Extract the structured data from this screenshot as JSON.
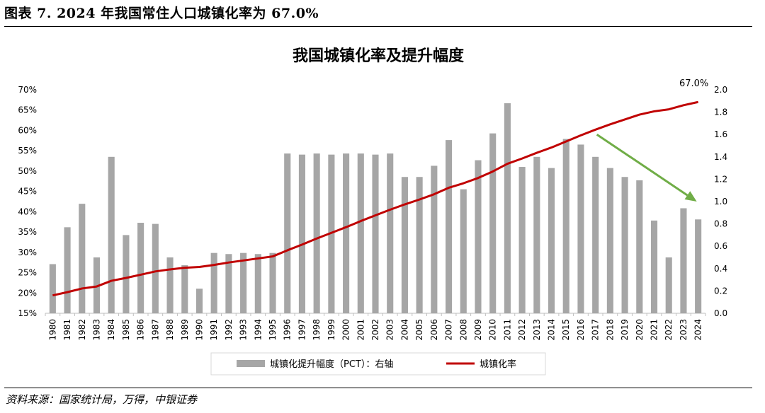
{
  "figure": {
    "title": "图表 7. 2024 年我国常住人口城镇化率为 67.0%",
    "source": "资料来源：国家统计局，万得，中银证券"
  },
  "colors": {
    "bar": "#a6a6a6",
    "line": "#c00000",
    "arrow": "#70ad47"
  },
  "chart_data": {
    "type": "bar+line",
    "title": "我国城镇化率及提升幅度",
    "categories": [
      "1980",
      "1981",
      "1982",
      "1983",
      "1984",
      "1985",
      "1986",
      "1987",
      "1988",
      "1989",
      "1990",
      "1991",
      "1992",
      "1993",
      "1994",
      "1995",
      "1996",
      "1997",
      "1998",
      "1999",
      "2000",
      "2001",
      "2002",
      "2003",
      "2004",
      "2005",
      "2006",
      "2007",
      "2008",
      "2009",
      "2010",
      "2011",
      "2012",
      "2013",
      "2014",
      "2015",
      "2016",
      "2017",
      "2018",
      "2019",
      "2020",
      "2021",
      "2022",
      "2023",
      "2024"
    ],
    "series": [
      {
        "name": "城镇化提升幅度（PCT）：右轴",
        "type": "bar",
        "axis": "right",
        "values": [
          0.44,
          0.77,
          0.98,
          0.5,
          1.4,
          0.7,
          0.81,
          0.8,
          0.5,
          0.43,
          0.22,
          0.54,
          0.53,
          0.54,
          0.53,
          0.54,
          1.43,
          1.42,
          1.43,
          1.42,
          1.43,
          1.43,
          1.42,
          1.43,
          1.22,
          1.22,
          1.32,
          1.55,
          1.11,
          1.37,
          1.61,
          1.88,
          1.31,
          1.4,
          1.3,
          1.56,
          1.51,
          1.4,
          1.3,
          1.22,
          1.19,
          0.83,
          0.5,
          0.94,
          0.84
        ]
      },
      {
        "name": "城镇化率",
        "type": "line",
        "axis": "left",
        "values": [
          19.4,
          20.2,
          21.1,
          21.6,
          23.0,
          23.7,
          24.5,
          25.3,
          25.8,
          26.2,
          26.4,
          26.9,
          27.5,
          28.0,
          28.5,
          29.0,
          30.5,
          31.9,
          33.4,
          34.8,
          36.2,
          37.7,
          39.1,
          40.5,
          41.8,
          43.0,
          44.3,
          45.9,
          47.0,
          48.3,
          49.9,
          51.8,
          53.1,
          54.5,
          55.8,
          57.3,
          58.8,
          60.2,
          61.5,
          62.7,
          63.9,
          64.7,
          65.2,
          66.2,
          67.0
        ]
      }
    ],
    "y_left": {
      "min": 15,
      "max": 70,
      "ticks": [
        "15%",
        "20%",
        "25%",
        "30%",
        "35%",
        "40%",
        "45%",
        "50%",
        "55%",
        "60%",
        "65%",
        "70%"
      ]
    },
    "y_right": {
      "min": 0.0,
      "max": 2.0,
      "ticks": [
        "0.0",
        "0.2",
        "0.4",
        "0.6",
        "0.8",
        "1.0",
        "1.2",
        "1.4",
        "1.6",
        "1.8",
        "2.0"
      ]
    },
    "annotation": {
      "text": "67.0%",
      "category": "2024"
    },
    "trend_arrow": {
      "from": [
        "2017",
        1.6
      ],
      "to": [
        "2024",
        1.0
      ]
    },
    "legend_position": "bottom"
  }
}
